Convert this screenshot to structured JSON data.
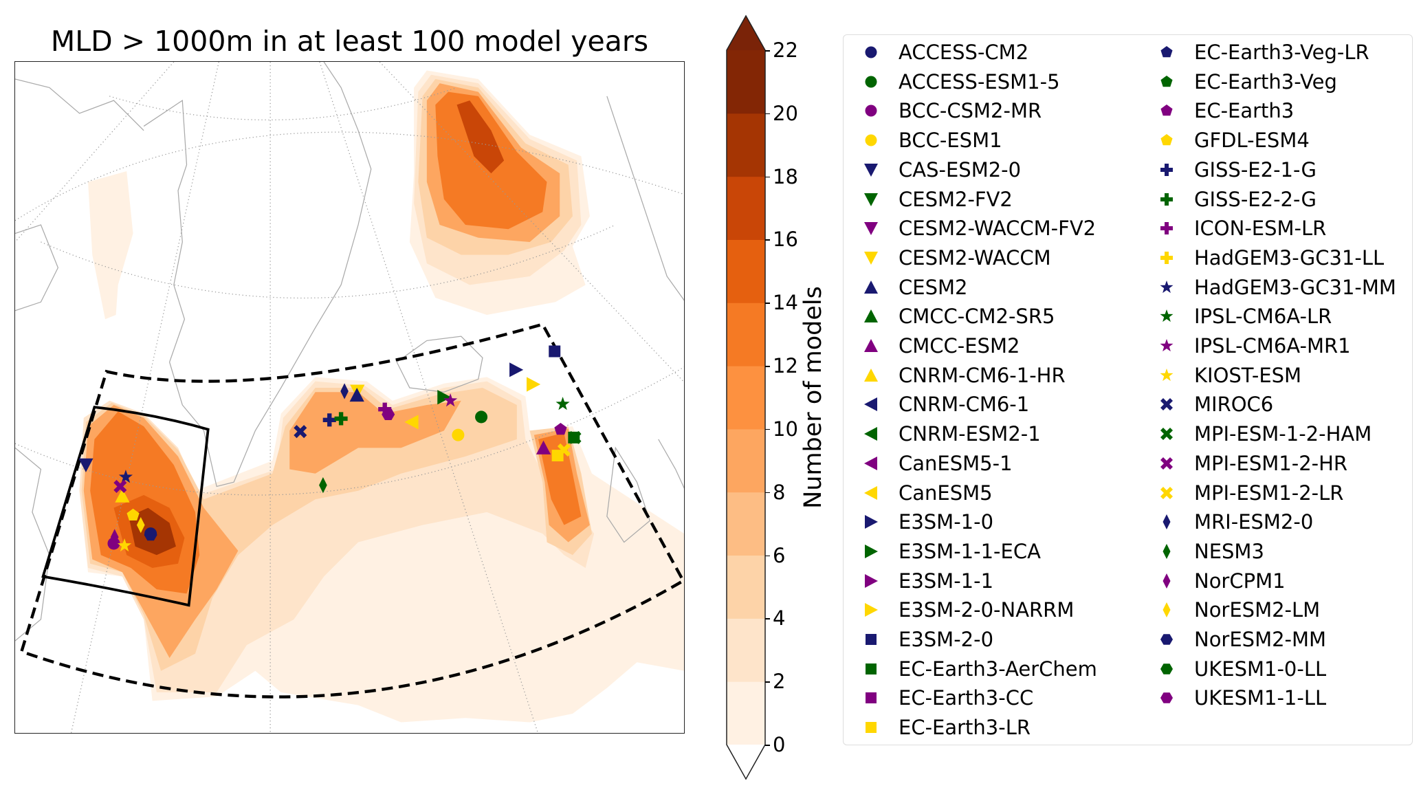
{
  "title": "MLD > 1000m in at least 100 model years",
  "colorbar": {
    "label": "Number of models",
    "ticks": [
      "0",
      "2",
      "4",
      "6",
      "8",
      "10",
      "12",
      "14",
      "16",
      "18",
      "20",
      "22"
    ],
    "levels": [
      0,
      2,
      4,
      6,
      8,
      10,
      12,
      14,
      16,
      18,
      20,
      22
    ],
    "colors": [
      "#fff1e3",
      "#fee4ca",
      "#fdd3a8",
      "#fdbd84",
      "#fda660",
      "#fd9140",
      "#f57a24",
      "#e5600f",
      "#c94607",
      "#a53503",
      "#832605"
    ],
    "over_color": "#7a2308",
    "extend": "both"
  },
  "marker_colors": {
    "navy": "#191970",
    "green": "#006400",
    "purple": "#800080",
    "gold": "#ffd700"
  },
  "models": [
    {
      "name": "ACCESS-CM2",
      "marker": "circle",
      "color": "navy"
    },
    {
      "name": "ACCESS-ESM1-5",
      "marker": "circle",
      "color": "green"
    },
    {
      "name": "BCC-CSM2-MR",
      "marker": "circle",
      "color": "purple"
    },
    {
      "name": "BCC-ESM1",
      "marker": "circle",
      "color": "gold"
    },
    {
      "name": "CAS-ESM2-0",
      "marker": "tri-down",
      "color": "navy"
    },
    {
      "name": "CESM2-FV2",
      "marker": "tri-down",
      "color": "green"
    },
    {
      "name": "CESM2-WACCM-FV2",
      "marker": "tri-down",
      "color": "purple"
    },
    {
      "name": "CESM2-WACCM",
      "marker": "tri-down",
      "color": "gold"
    },
    {
      "name": "CESM2",
      "marker": "tri-up",
      "color": "navy"
    },
    {
      "name": "CMCC-CM2-SR5",
      "marker": "tri-up",
      "color": "green"
    },
    {
      "name": "CMCC-ESM2",
      "marker": "tri-up",
      "color": "purple"
    },
    {
      "name": "CNRM-CM6-1-HR",
      "marker": "tri-up",
      "color": "gold"
    },
    {
      "name": "CNRM-CM6-1",
      "marker": "tri-left",
      "color": "navy"
    },
    {
      "name": "CNRM-ESM2-1",
      "marker": "tri-left",
      "color": "green"
    },
    {
      "name": "CanESM5-1",
      "marker": "tri-left",
      "color": "purple"
    },
    {
      "name": "CanESM5",
      "marker": "tri-left",
      "color": "gold"
    },
    {
      "name": "E3SM-1-0",
      "marker": "tri-right",
      "color": "navy"
    },
    {
      "name": "E3SM-1-1-ECA",
      "marker": "tri-right",
      "color": "green"
    },
    {
      "name": "E3SM-1-1",
      "marker": "tri-right",
      "color": "purple"
    },
    {
      "name": "E3SM-2-0-NARRM",
      "marker": "tri-right",
      "color": "gold"
    },
    {
      "name": "E3SM-2-0",
      "marker": "square",
      "color": "navy"
    },
    {
      "name": "EC-Earth3-AerChem",
      "marker": "square",
      "color": "green"
    },
    {
      "name": "EC-Earth3-CC",
      "marker": "square",
      "color": "purple"
    },
    {
      "name": "EC-Earth3-LR",
      "marker": "square",
      "color": "gold"
    },
    {
      "name": "EC-Earth3-Veg-LR",
      "marker": "pentagon",
      "color": "navy"
    },
    {
      "name": "EC-Earth3-Veg",
      "marker": "pentagon",
      "color": "green"
    },
    {
      "name": "EC-Earth3",
      "marker": "pentagon",
      "color": "purple"
    },
    {
      "name": "GFDL-ESM4",
      "marker": "pentagon",
      "color": "gold"
    },
    {
      "name": "GISS-E2-1-G",
      "marker": "plus",
      "color": "navy"
    },
    {
      "name": "GISS-E2-2-G",
      "marker": "plus",
      "color": "green"
    },
    {
      "name": "ICON-ESM-LR",
      "marker": "plus",
      "color": "purple"
    },
    {
      "name": "HadGEM3-GC31-LL",
      "marker": "plus",
      "color": "gold"
    },
    {
      "name": "HadGEM3-GC31-MM",
      "marker": "star",
      "color": "navy"
    },
    {
      "name": "IPSL-CM6A-LR",
      "marker": "star",
      "color": "green"
    },
    {
      "name": "IPSL-CM6A-MR1",
      "marker": "star",
      "color": "purple"
    },
    {
      "name": "KIOST-ESM",
      "marker": "star",
      "color": "gold"
    },
    {
      "name": "MIROC6",
      "marker": "x",
      "color": "navy"
    },
    {
      "name": "MPI-ESM-1-2-HAM",
      "marker": "x",
      "color": "green"
    },
    {
      "name": "MPI-ESM1-2-HR",
      "marker": "x",
      "color": "purple"
    },
    {
      "name": "MPI-ESM1-2-LR",
      "marker": "x",
      "color": "gold"
    },
    {
      "name": "MRI-ESM2-0",
      "marker": "diamond",
      "color": "navy"
    },
    {
      "name": "NESM3",
      "marker": "diamond",
      "color": "green"
    },
    {
      "name": "NorCPM1",
      "marker": "diamond",
      "color": "purple"
    },
    {
      "name": "NorESM2-LM",
      "marker": "diamond",
      "color": "gold"
    },
    {
      "name": "NorESM2-MM",
      "marker": "hexagon",
      "color": "navy"
    },
    {
      "name": "UKESM1-0-LL",
      "marker": "hexagon",
      "color": "green"
    },
    {
      "name": "UKESM1-1-LL",
      "marker": "hexagon",
      "color": "purple"
    }
  ]
}
